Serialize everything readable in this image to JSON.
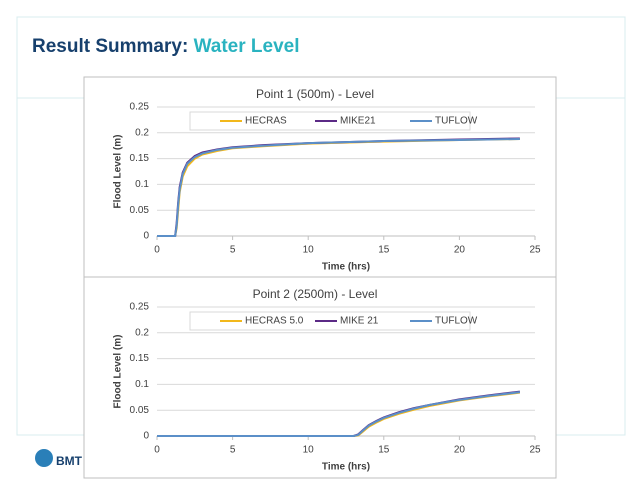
{
  "header": {
    "title_main": "Result Summary:",
    "title_accent": "Water Level",
    "logo": "BMT"
  },
  "chart_data": [
    {
      "type": "line",
      "title": "Point 1 (500m) - Level",
      "x_label": "Time (hrs)",
      "y_label": "Flood Level (m)",
      "x": [
        0,
        1.2,
        1.3,
        1.4,
        1.5,
        1.7,
        2,
        2.5,
        3,
        4,
        5,
        7,
        10,
        15,
        20,
        24
      ],
      "series": [
        {
          "name": "HECRAS",
          "color": "#f2b81c",
          "values": [
            0,
            0,
            0.015,
            0.05,
            0.085,
            0.115,
            0.135,
            0.15,
            0.158,
            0.165,
            0.17,
            0.174,
            0.179,
            0.183,
            0.186,
            0.188
          ]
        },
        {
          "name": "MIKE21",
          "color": "#5b2a86",
          "values": [
            0,
            0,
            0.025,
            0.065,
            0.095,
            0.123,
            0.142,
            0.155,
            0.162,
            0.168,
            0.172,
            0.176,
            0.18,
            0.184,
            0.187,
            0.189
          ]
        },
        {
          "name": "TUFLOW",
          "color": "#5b8fc8",
          "values": [
            0,
            0,
            0.02,
            0.06,
            0.09,
            0.12,
            0.14,
            0.153,
            0.16,
            0.167,
            0.171,
            0.175,
            0.18,
            0.184,
            0.186,
            0.188
          ]
        }
      ],
      "xlim": [
        0,
        25
      ],
      "xticks": [
        0,
        5,
        10,
        15,
        20,
        25
      ],
      "ylim": [
        0,
        0.25
      ],
      "yticks": [
        0,
        0.05,
        0.1,
        0.15,
        0.2,
        0.25
      ],
      "grid": true,
      "legend": "top"
    },
    {
      "type": "line",
      "title": "Point 2 (2500m) - Level",
      "x_label": "Time (hrs)",
      "y_label": "Flood Level (m)",
      "x": [
        0,
        13,
        13.3,
        13.6,
        14,
        14.5,
        15,
        16,
        17,
        18,
        20,
        22,
        24
      ],
      "series": [
        {
          "name": "HECRAS 5.0",
          "color": "#f2b81c",
          "values": [
            0,
            0,
            0.001,
            0.008,
            0.018,
            0.026,
            0.033,
            0.043,
            0.051,
            0.058,
            0.069,
            0.077,
            0.084
          ]
        },
        {
          "name": "MIKE 21",
          "color": "#5b2a86",
          "values": [
            0,
            0,
            0.003,
            0.011,
            0.021,
            0.029,
            0.036,
            0.046,
            0.054,
            0.06,
            0.071,
            0.079,
            0.086
          ]
        },
        {
          "name": "TUFLOW",
          "color": "#5b8fc8",
          "values": [
            0,
            0,
            0.002,
            0.01,
            0.02,
            0.028,
            0.035,
            0.045,
            0.053,
            0.06,
            0.07,
            0.078,
            0.085
          ]
        }
      ],
      "xlim": [
        0,
        25
      ],
      "xticks": [
        0,
        5,
        10,
        15,
        20,
        25
      ],
      "ylim": [
        0,
        0.25
      ],
      "yticks": [
        0,
        0.05,
        0.1,
        0.15,
        0.2,
        0.25
      ],
      "grid": true,
      "legend": "top"
    }
  ]
}
